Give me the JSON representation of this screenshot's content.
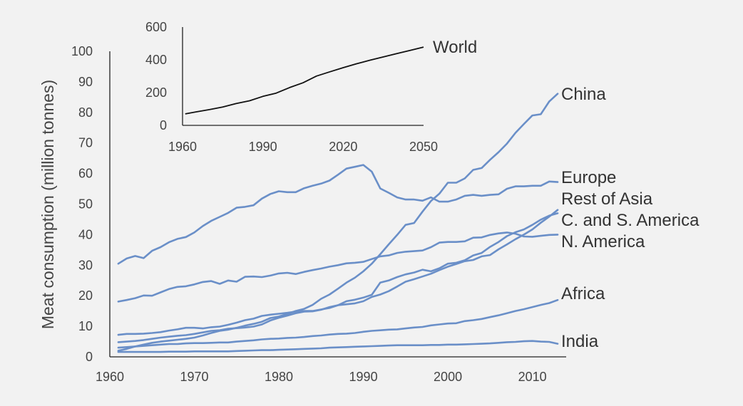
{
  "colors": {
    "background": "#f2f2f2",
    "series": "#6a8fc8",
    "world": "#111111",
    "axis": "#222222",
    "text": "#444444"
  },
  "chart_data": [
    {
      "type": "line",
      "title": "",
      "xlabel": "",
      "ylabel": "Meat consumption (million tonnes)",
      "xlim": [
        1960,
        2014
      ],
      "ylim": [
        0,
        100
      ],
      "xticks": [
        "1960",
        "1970",
        "1980",
        "1990",
        "2000",
        "2010"
      ],
      "yticks": [
        "0",
        "10",
        "20",
        "30",
        "40",
        "50",
        "60",
        "70",
        "80",
        "90",
        "100"
      ],
      "grid": false,
      "legend": "direct labels at line ends (right)",
      "x": [
        1961,
        1962,
        1963,
        1964,
        1965,
        1966,
        1967,
        1968,
        1969,
        1970,
        1971,
        1972,
        1973,
        1974,
        1975,
        1976,
        1977,
        1978,
        1979,
        1980,
        1981,
        1982,
        1983,
        1984,
        1985,
        1986,
        1987,
        1988,
        1989,
        1990,
        1991,
        1992,
        1993,
        1994,
        1995,
        1996,
        1997,
        1998,
        1999,
        2000,
        2001,
        2002,
        2003,
        2004,
        2005,
        2006,
        2007,
        2008,
        2009,
        2010,
        2011,
        2012,
        2013
      ],
      "series": [
        {
          "name": "China",
          "values": [
            2.0,
            2.6,
            3.4,
            4.0,
            4.6,
            5.0,
            5.3,
            5.6,
            5.9,
            6.3,
            7.0,
            7.8,
            8.5,
            8.9,
            9.5,
            10.2,
            10.8,
            11.5,
            12.7,
            13.2,
            14.0,
            15.0,
            15.7,
            17.0,
            19.0,
            20.4,
            22.3,
            24.3,
            25.9,
            28.0,
            30.5,
            33.6,
            36.8,
            39.9,
            43.2,
            43.8,
            47.5,
            51.0,
            53.4,
            57.0,
            57.0,
            58.4,
            61.2,
            61.8,
            64.5,
            67.0,
            69.8,
            73.3,
            76.2,
            79.0,
            79.4,
            83.6,
            86.1
          ]
        },
        {
          "name": "Europe",
          "values": [
            30.5,
            32.2,
            33.0,
            32.3,
            34.7,
            35.9,
            37.5,
            38.6,
            39.2,
            40.7,
            42.8,
            44.5,
            45.8,
            47.1,
            48.8,
            49.1,
            49.6,
            51.8,
            53.3,
            54.2,
            53.9,
            53.9,
            55.2,
            56.0,
            56.7,
            57.7,
            59.6,
            61.6,
            62.2,
            62.8,
            60.6,
            55.1,
            53.7,
            52.2,
            51.5,
            51.5,
            51.1,
            52.2,
            50.8,
            50.8,
            51.5,
            52.7,
            53.0,
            52.7,
            53.0,
            53.2,
            55.0,
            55.8,
            55.8,
            56.0,
            56.0,
            57.4,
            57.2
          ]
        },
        {
          "name": "Rest of Asia",
          "values": [
            4.8,
            5.0,
            5.2,
            5.5,
            5.9,
            6.3,
            6.6,
            6.9,
            7.1,
            7.5,
            8.0,
            8.5,
            8.7,
            9.2,
            9.4,
            9.6,
            9.9,
            10.6,
            11.9,
            12.8,
            13.5,
            14.3,
            14.8,
            14.9,
            15.4,
            16.3,
            16.9,
            17.2,
            17.5,
            18.2,
            19.6,
            20.4,
            21.5,
            23.0,
            24.6,
            25.4,
            26.3,
            27.2,
            28.4,
            29.5,
            30.4,
            31.3,
            31.7,
            32.9,
            33.3,
            35.2,
            36.8,
            38.5,
            40.0,
            41.7,
            43.9,
            45.9,
            48.1
          ]
        },
        {
          "name": "C. and S. America",
          "values": [
            7.2,
            7.5,
            7.5,
            7.6,
            7.8,
            8.1,
            8.6,
            9.0,
            9.5,
            9.5,
            9.3,
            9.7,
            9.9,
            10.5,
            11.2,
            12.0,
            12.5,
            13.4,
            13.8,
            14.1,
            14.4,
            14.8,
            15.0,
            15.0,
            15.5,
            16.0,
            16.9,
            18.2,
            18.7,
            19.4,
            20.3,
            24.3,
            25.0,
            26.1,
            27.0,
            27.6,
            28.5,
            28.0,
            29.0,
            30.5,
            30.8,
            31.6,
            33.2,
            34.0,
            36.0,
            37.6,
            39.5,
            40.8,
            41.7,
            43.2,
            44.9,
            46.2,
            47.0
          ]
        },
        {
          "name": "N. America",
          "values": [
            18.1,
            18.6,
            19.2,
            20.1,
            20.0,
            21.1,
            22.2,
            22.9,
            23.1,
            23.7,
            24.5,
            24.8,
            23.9,
            25.0,
            24.6,
            26.2,
            26.3,
            26.1,
            26.6,
            27.3,
            27.5,
            27.1,
            27.8,
            28.4,
            28.9,
            29.5,
            30.0,
            30.6,
            30.8,
            31.1,
            32.0,
            32.9,
            33.2,
            34.0,
            34.4,
            34.6,
            34.8,
            35.9,
            37.4,
            37.6,
            37.6,
            37.8,
            39.0,
            39.1,
            39.9,
            40.4,
            40.7,
            40.3,
            39.4,
            39.3,
            39.6,
            39.9,
            40.0
          ]
        },
        {
          "name": "Africa",
          "values": [
            3.0,
            3.2,
            3.4,
            3.6,
            3.8,
            4.0,
            4.2,
            4.2,
            4.4,
            4.5,
            4.5,
            4.6,
            4.7,
            4.7,
            5.0,
            5.2,
            5.4,
            5.7,
            5.9,
            6.0,
            6.2,
            6.3,
            6.5,
            6.8,
            7.0,
            7.3,
            7.5,
            7.6,
            7.8,
            8.2,
            8.5,
            8.7,
            8.9,
            9.0,
            9.3,
            9.6,
            9.8,
            10.3,
            10.6,
            10.9,
            11.0,
            11.7,
            12.0,
            12.4,
            13.0,
            13.6,
            14.3,
            15.0,
            15.6,
            16.3,
            17.0,
            17.6,
            18.6
          ]
        },
        {
          "name": "India",
          "values": [
            1.6,
            1.6,
            1.6,
            1.6,
            1.6,
            1.6,
            1.7,
            1.7,
            1.7,
            1.8,
            1.8,
            1.8,
            1.8,
            1.8,
            1.9,
            2.0,
            2.1,
            2.2,
            2.2,
            2.3,
            2.4,
            2.5,
            2.6,
            2.7,
            2.8,
            3.0,
            3.1,
            3.2,
            3.3,
            3.4,
            3.5,
            3.6,
            3.7,
            3.8,
            3.8,
            3.8,
            3.8,
            3.9,
            3.9,
            4.0,
            4.0,
            4.1,
            4.2,
            4.3,
            4.4,
            4.6,
            4.8,
            4.9,
            5.1,
            5.2,
            5.0,
            4.9,
            4.3
          ]
        }
      ]
    },
    {
      "type": "line",
      "title": "",
      "xlabel": "",
      "ylabel": "",
      "xlim": [
        1960,
        2050
      ],
      "ylim": [
        0,
        600
      ],
      "xticks": [
        "1960",
        "1990",
        "2020",
        "2050"
      ],
      "yticks": [
        "0",
        "200",
        "400",
        "600"
      ],
      "grid": false,
      "legend": "direct label at line end (right)",
      "x": [
        1961,
        1965,
        1970,
        1975,
        1980,
        1985,
        1990,
        1995,
        2000,
        2005,
        2010,
        2015,
        2020,
        2025,
        2030,
        2035,
        2040,
        2045,
        2050
      ],
      "series": [
        {
          "name": "World",
          "values": [
            70,
            82,
            96,
            112,
            133,
            150,
            177,
            197,
            231,
            260,
            301,
            327,
            352,
            376,
            398,
            418,
            438,
            458,
            478
          ]
        }
      ]
    }
  ]
}
